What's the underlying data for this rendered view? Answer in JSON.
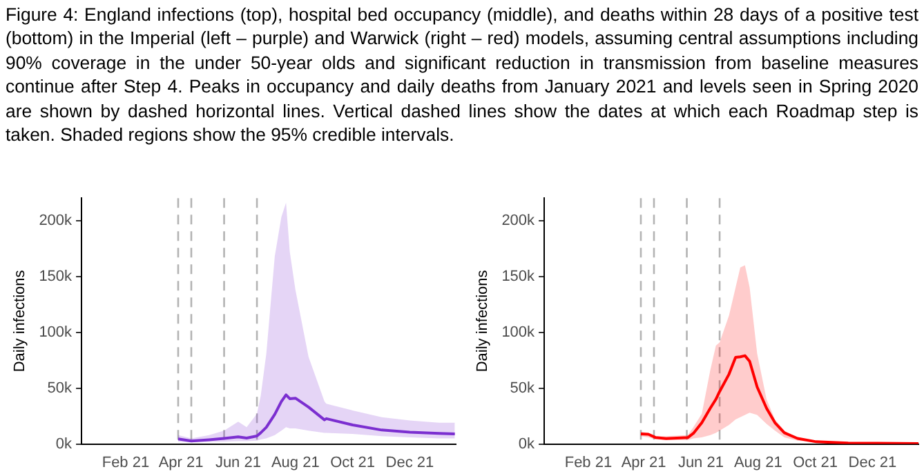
{
  "chart_data": [
    {
      "type": "line",
      "title": "Figure 4: England infections (top), hospital bed occupancy (middle), and deaths within 28 days of a positive test (bottom) in the Imperial (left – purple) and Warwick (right – red) models, assuming central assumptions including 90% coverage in the under 50-year olds and significant reduction in transmission from baseline measures continue after Step 4. Peaks in occupancy and daily deaths from January 2021 and levels seen in Spring 2020 are shown by dashed horizontal lines. Vertical dashed lines show the dates at which each Roadmap step is taken. Shaded regions show the 95% credible intervals.",
      "ylabel": "Daily infections",
      "xlim": [
        "2020-12-16",
        "2022-01-19"
      ],
      "xticks": [
        {
          "value": "2021-02-01",
          "label": "Feb 21"
        },
        {
          "value": "2021-04-01",
          "label": "Apr 21"
        },
        {
          "value": "2021-06-01",
          "label": "Jun 21"
        },
        {
          "value": "2021-08-01",
          "label": "Aug 21"
        },
        {
          "value": "2021-10-01",
          "label": "Oct 21"
        },
        {
          "value": "2021-12-01",
          "label": "Dec 21"
        }
      ],
      "ylim": [
        0,
        220000
      ],
      "yticks": [
        {
          "value": 0,
          "label": "0k"
        },
        {
          "value": 50000,
          "label": "50k"
        },
        {
          "value": 100000,
          "label": "100k"
        },
        {
          "value": 150000,
          "label": "150k"
        },
        {
          "value": 200000,
          "label": "200k"
        }
      ],
      "series": [
        {
          "color": "#7b2fd0",
          "x": [
            "2021-03-29",
            "2021-04-12",
            "2021-05-01",
            "2021-05-17",
            "2021-06-01",
            "2021-06-10",
            "2021-06-21",
            "2021-06-25",
            "2021-07-01",
            "2021-07-10",
            "2021-07-17",
            "2021-07-22",
            "2021-07-26",
            "2021-08-01",
            "2021-08-15",
            "2021-09-01",
            "2021-09-03",
            "2021-10-01",
            "2021-11-01",
            "2021-12-01",
            "2022-01-01",
            "2022-01-18"
          ],
          "values": [
            4500,
            2700,
            3800,
            5000,
            6400,
            5300,
            7200,
            10000,
            15000,
            26500,
            38000,
            44000,
            40500,
            41000,
            33000,
            21600,
            22700,
            17000,
            12500,
            10600,
            9500,
            9000
          ],
          "lower": [
            2000,
            1500,
            1800,
            2000,
            2500,
            2500,
            3000,
            4000,
            5000,
            8000,
            12000,
            15000,
            14000,
            14000,
            12000,
            10000,
            10000,
            9000,
            7000,
            6000,
            5000,
            5000
          ],
          "upper": [
            8000,
            5000,
            8000,
            12000,
            20000,
            15000,
            27000,
            43000,
            81000,
            168000,
            203000,
            216000,
            172000,
            138000,
            78000,
            38000,
            36000,
            30000,
            24000,
            21000,
            19000,
            19000
          ]
        }
      ],
      "ref_lines": [
        {
          "axis": "x",
          "value": "2021-03-29",
          "color": "#b3b3b3",
          "line_style": "dashed"
        },
        {
          "axis": "x",
          "value": "2021-04-12",
          "color": "#b3b3b3",
          "line_style": "dashed"
        },
        {
          "axis": "x",
          "value": "2021-05-17",
          "color": "#b3b3b3",
          "line_style": "dashed"
        },
        {
          "axis": "x",
          "value": "2021-06-21",
          "color": "#b3b3b3",
          "line_style": "dashed"
        }
      ]
    },
    {
      "type": "line",
      "ylabel": "Daily infections",
      "xlim": [
        "2020-12-16",
        "2022-01-19"
      ],
      "xticks": [
        {
          "value": "2021-02-01",
          "label": "Feb 21"
        },
        {
          "value": "2021-04-01",
          "label": "Apr 21"
        },
        {
          "value": "2021-06-01",
          "label": "Jun 21"
        },
        {
          "value": "2021-08-01",
          "label": "Aug 21"
        },
        {
          "value": "2021-10-01",
          "label": "Oct 21"
        },
        {
          "value": "2021-12-01",
          "label": "Dec 21"
        }
      ],
      "ylim": [
        0,
        220000
      ],
      "yticks": [
        {
          "value": 0,
          "label": "0k"
        },
        {
          "value": 50000,
          "label": "50k"
        },
        {
          "value": 100000,
          "label": "100k"
        },
        {
          "value": 150000,
          "label": "150k"
        },
        {
          "value": 200000,
          "label": "200k"
        }
      ],
      "series": [
        {
          "color": "#ff0000",
          "x": [
            "2021-03-29",
            "2021-04-06",
            "2021-04-14",
            "2021-04-25",
            "2021-05-18",
            "2021-05-24",
            "2021-06-02",
            "2021-06-11",
            "2021-06-17",
            "2021-06-21",
            "2021-07-01",
            "2021-07-08",
            "2021-07-13",
            "2021-07-18",
            "2021-07-23",
            "2021-07-31",
            "2021-08-10",
            "2021-08-19",
            "2021-08-29",
            "2021-09-12",
            "2021-10-02",
            "2021-11-05",
            "2022-01-19"
          ],
          "values": [
            9000,
            8700,
            5700,
            4900,
            5700,
            9500,
            19000,
            32000,
            40000,
            47000,
            62500,
            77500,
            78000,
            79000,
            74000,
            51000,
            32000,
            19000,
            10000,
            5000,
            2000,
            800,
            400
          ],
          "lower": [
            7000,
            6000,
            4000,
            3500,
            3500,
            5000,
            6000,
            8000,
            10000,
            12000,
            17000,
            22000,
            24000,
            26000,
            28000,
            26000,
            18000,
            12000,
            6000,
            3000,
            1200,
            500,
            200
          ],
          "upper": [
            11000,
            10000,
            7000,
            7000,
            8000,
            15000,
            27000,
            66000,
            88000,
            91000,
            115000,
            140000,
            158000,
            160000,
            140000,
            81000,
            40000,
            22000,
            12000,
            5000,
            2000,
            1000,
            800
          ]
        }
      ],
      "ref_lines": [
        {
          "axis": "x",
          "value": "2021-03-29",
          "color": "#b3b3b3",
          "line_style": "dashed"
        },
        {
          "axis": "x",
          "value": "2021-04-12",
          "color": "#b3b3b3",
          "line_style": "dashed"
        },
        {
          "axis": "x",
          "value": "2021-05-17",
          "color": "#b3b3b3",
          "line_style": "dashed"
        },
        {
          "axis": "x",
          "value": "2021-06-21",
          "color": "#b3b3b3",
          "line_style": "dashed"
        }
      ]
    }
  ]
}
